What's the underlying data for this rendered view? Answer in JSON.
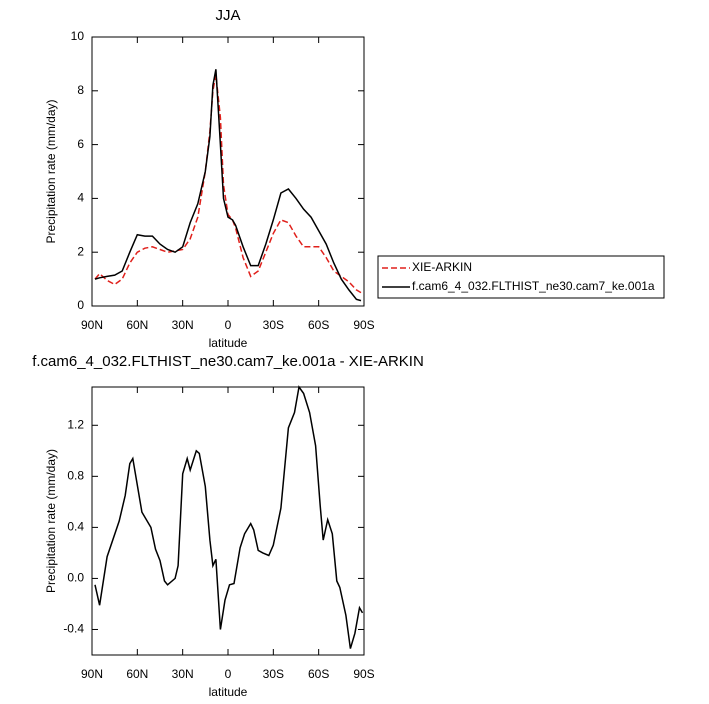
{
  "chart_data": [
    {
      "type": "line",
      "title": "JJA",
      "xlabel": "latitude",
      "ylabel": "Precipitation rate (mm/day)",
      "x": [
        88,
        85,
        80,
        75,
        70,
        65,
        60,
        55,
        50,
        45,
        40,
        35,
        30,
        25,
        20,
        15,
        12,
        10,
        8,
        5,
        3,
        0,
        -3,
        -5,
        -10,
        -15,
        -20,
        -25,
        -30,
        -35,
        -40,
        -45,
        -50,
        -55,
        -60,
        -65,
        -70,
        -75,
        -80,
        -85,
        -88
      ],
      "xlim": [
        90,
        -90
      ],
      "xticks": [
        {
          "value": 90,
          "label": "90N"
        },
        {
          "value": 60,
          "label": "60N"
        },
        {
          "value": 30,
          "label": "30N"
        },
        0,
        {
          "value": -30,
          "label": "30S"
        },
        {
          "value": -60,
          "label": "60S"
        },
        {
          "value": -90,
          "label": "90S"
        }
      ],
      "ylim": [
        0,
        10
      ],
      "yticks": [
        0,
        2,
        4,
        6,
        8,
        10
      ],
      "legend": "right",
      "series": [
        {
          "name": "XIE-ARKIN",
          "color": "#e0201b",
          "dashed": true,
          "values": [
            1.0,
            1.2,
            0.95,
            0.8,
            1.0,
            1.6,
            2.0,
            2.15,
            2.2,
            2.1,
            2.0,
            2.05,
            2.1,
            2.5,
            3.3,
            5.0,
            6.5,
            8.0,
            8.6,
            7.0,
            4.5,
            3.4,
            3.2,
            2.9,
            1.8,
            1.1,
            1.3,
            2.0,
            2.7,
            3.2,
            3.1,
            2.6,
            2.2,
            2.2,
            2.2,
            1.8,
            1.3,
            1.1,
            0.9,
            0.6,
            0.5
          ]
        },
        {
          "name": "f.cam6_4_032.FLTHIST_ne30.cam7_ke.001a",
          "color": "#000000",
          "dashed": false,
          "values": [
            1.0,
            1.05,
            1.1,
            1.15,
            1.3,
            2.0,
            2.65,
            2.6,
            2.6,
            2.3,
            2.1,
            2.0,
            2.2,
            3.1,
            3.8,
            5.0,
            6.3,
            8.2,
            8.8,
            6.0,
            4.0,
            3.3,
            3.2,
            3.0,
            2.2,
            1.5,
            1.5,
            2.3,
            3.2,
            4.2,
            4.35,
            4.0,
            3.6,
            3.3,
            2.8,
            2.3,
            1.6,
            1.0,
            0.6,
            0.25,
            0.2
          ]
        }
      ]
    },
    {
      "type": "line",
      "title": "f.cam6_4_032.FLTHIST_ne30.cam7_ke.001a - XIE-ARKIN",
      "xlabel": "latitude",
      "ylabel": "Precipitation rate (mm/day)",
      "x": [
        88,
        85,
        80,
        72,
        68,
        65,
        63,
        57,
        51,
        48,
        45,
        42,
        40,
        35,
        33,
        30,
        27,
        25,
        21,
        19,
        15,
        12,
        10,
        8,
        5,
        2,
        -1,
        -4,
        -8,
        -11,
        -15,
        -17,
        -20,
        -23,
        -27,
        -30,
        -35,
        -40,
        -44,
        -47,
        -50,
        -54,
        -58,
        -61,
        -63,
        -66,
        -69,
        -72,
        -74,
        -78,
        -81,
        -84,
        -87,
        -89
      ],
      "xlim": [
        90,
        -90
      ],
      "xticks": [
        {
          "value": 90,
          "label": "90N"
        },
        {
          "value": 60,
          "label": "60N"
        },
        {
          "value": 30,
          "label": "30N"
        },
        0,
        {
          "value": -30,
          "label": "30S"
        },
        {
          "value": -60,
          "label": "60S"
        },
        {
          "value": -90,
          "label": "90S"
        }
      ],
      "ylim": [
        -0.6,
        1.5
      ],
      "yticks": [
        -0.4,
        {
          "value": 0,
          "label": "0.0"
        },
        0.4,
        0.8,
        1.2
      ],
      "series": [
        {
          "color": "#000000",
          "dashed": false,
          "values": [
            -0.05,
            -0.21,
            0.17,
            0.45,
            0.65,
            0.9,
            0.94,
            0.52,
            0.4,
            0.23,
            0.14,
            -0.02,
            -0.05,
            0.0,
            0.1,
            0.82,
            0.94,
            0.85,
            1.0,
            0.98,
            0.72,
            0.3,
            0.1,
            0.15,
            -0.4,
            -0.17,
            -0.05,
            -0.04,
            0.24,
            0.35,
            0.43,
            0.38,
            0.22,
            0.2,
            0.18,
            0.26,
            0.55,
            1.18,
            1.3,
            1.5,
            1.45,
            1.3,
            1.04,
            0.57,
            0.3,
            0.46,
            0.35,
            -0.02,
            -0.07,
            -0.29,
            -0.55,
            -0.43,
            -0.23,
            -0.27
          ]
        }
      ]
    }
  ]
}
